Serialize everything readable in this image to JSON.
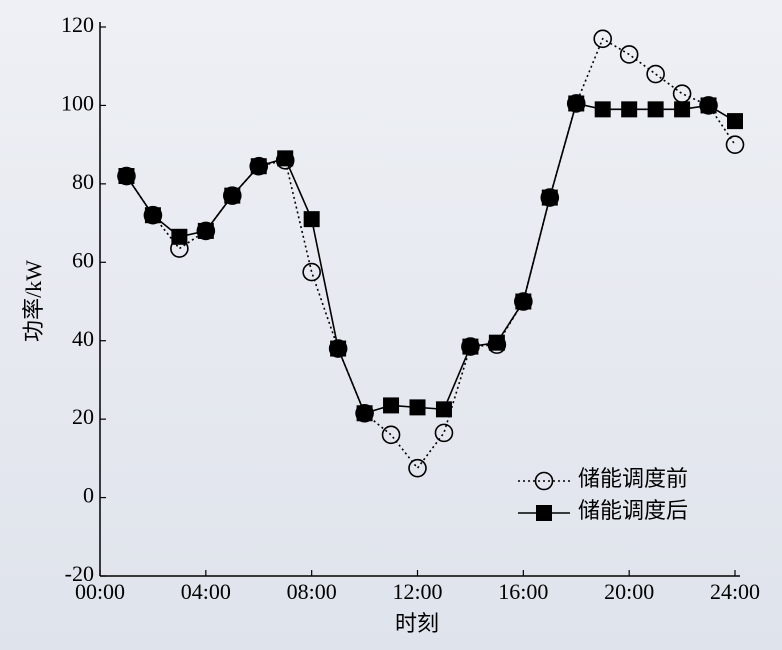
{
  "chart_data": {
    "type": "line",
    "xlabel": "时刻",
    "ylabel": "功率/kW",
    "x": [
      1,
      2,
      3,
      4,
      5,
      6,
      7,
      8,
      9,
      10,
      11,
      12,
      13,
      14,
      15,
      16,
      17,
      18,
      19,
      20,
      21,
      22,
      23,
      24
    ],
    "xlim": [
      0,
      24
    ],
    "xticks": [
      {
        "value": 0,
        "label": "00:00"
      },
      {
        "value": 4,
        "label": "04:00"
      },
      {
        "value": 8,
        "label": "08:00"
      },
      {
        "value": 12,
        "label": "12:00"
      },
      {
        "value": 16,
        "label": "16:00"
      },
      {
        "value": 20,
        "label": "20:00"
      },
      {
        "value": 24,
        "label": "24:00"
      }
    ],
    "ylim": [
      -20,
      120
    ],
    "yticks": [
      -20,
      0,
      20,
      40,
      60,
      80,
      100,
      120
    ],
    "legend": "lower right",
    "series": [
      {
        "name": "储能调度前",
        "color": "#000000",
        "linestyle": "dotted",
        "marker": "circle",
        "values": [
          82,
          72,
          63.5,
          68,
          77,
          84.5,
          86,
          57.5,
          38,
          21.5,
          16,
          7.5,
          16.5,
          38.5,
          39,
          50,
          76.5,
          100.5,
          117,
          113,
          108,
          103,
          100,
          90
        ]
      },
      {
        "name": "储能调度后",
        "color": "#000000",
        "linestyle": "solid",
        "marker": "square",
        "values": [
          82,
          72,
          66.5,
          68,
          77,
          84.5,
          86.5,
          71,
          38,
          21.5,
          23.5,
          23,
          22.5,
          38.5,
          39.5,
          50,
          76.5,
          100.5,
          99,
          99,
          99,
          99,
          100,
          96
        ]
      }
    ]
  }
}
